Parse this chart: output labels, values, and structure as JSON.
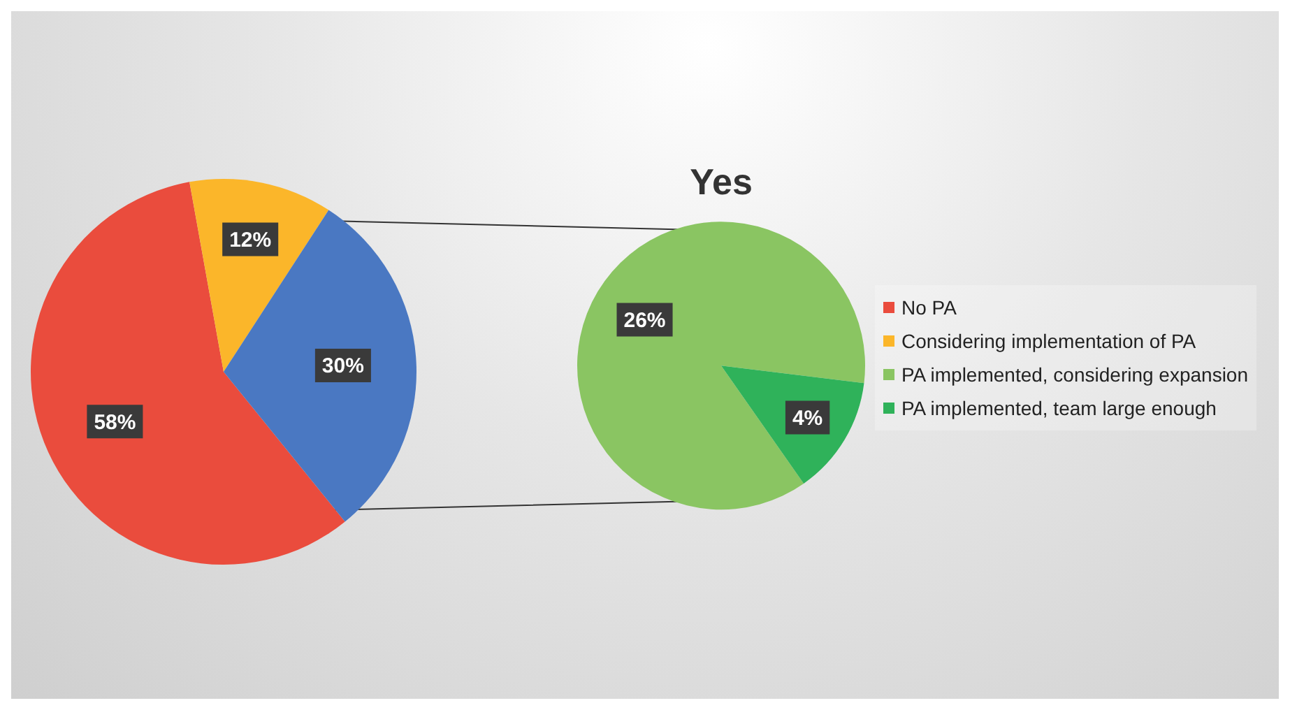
{
  "chart_data": [
    {
      "type": "pie",
      "categories": [
        "No PA",
        "Considering implementation of PA",
        null
      ],
      "values": [
        58,
        12,
        30
      ],
      "colors": [
        "#ea4c3d",
        "#fbb62a",
        "#4a78c2"
      ],
      "value_labels": [
        "58%",
        "12%",
        "30%"
      ],
      "legend": "right"
    },
    {
      "type": "pie",
      "title": "Yes",
      "categories": [
        "PA implemented, considering expansion",
        "PA implemented, team large enough"
      ],
      "values": [
        26,
        4
      ],
      "colors": [
        "#8ac562",
        "#2fb25a"
      ],
      "value_labels": [
        "26%",
        "4%"
      ],
      "legend": "right"
    }
  ]
}
